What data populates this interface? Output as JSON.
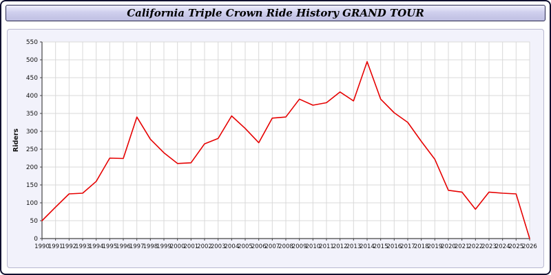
{
  "header": {
    "title": "California Triple Crown Ride History GRAND TOUR"
  },
  "chart_data": {
    "type": "line",
    "title": "California Triple Crown Ride History GRAND TOUR",
    "xlabel": "",
    "ylabel": "Riders",
    "ylim": [
      0,
      550
    ],
    "ytick_step": 50,
    "grid": true,
    "legend_position": "none",
    "x": [
      1990,
      1991,
      1992,
      1993,
      1994,
      1995,
      1996,
      1997,
      1998,
      1999,
      2000,
      2001,
      2002,
      2003,
      2004,
      2005,
      2006,
      2007,
      2008,
      2009,
      2010,
      2011,
      2012,
      2013,
      2014,
      2015,
      2016,
      2017,
      2018,
      2019,
      2020,
      2021,
      2022,
      2023,
      2024,
      2025,
      2026
    ],
    "series": [
      {
        "name": "Riders",
        "color": "#e60000",
        "values": [
          50,
          88,
          125,
          127,
          160,
          225,
          224,
          340,
          278,
          240,
          210,
          212,
          265,
          280,
          343,
          308,
          268,
          337,
          340,
          390,
          373,
          380,
          410,
          385,
          495,
          390,
          352,
          325,
          272,
          222,
          135,
          130,
          82,
          130,
          127,
          125,
          0
        ]
      }
    ]
  },
  "colors": {
    "line": "#e60000",
    "grid": "#d9d9d9",
    "axis": "#444444",
    "plot_bg": "#ffffff",
    "panel_bg": "#f2f2fb",
    "tick_text": "#111111"
  }
}
